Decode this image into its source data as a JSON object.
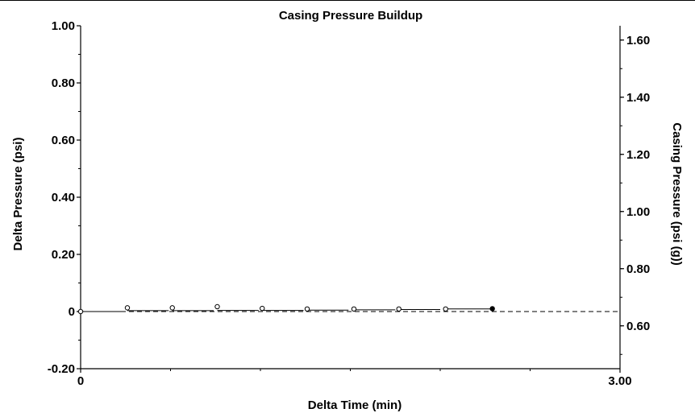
{
  "chart_data": {
    "type": "scatter",
    "title": "Casing Pressure Buildup",
    "xlabel": "Delta Time (min)",
    "ylabel": "Delta Pressure (psi)",
    "y2label": "Casing Pressure (psi (g))",
    "xlim": [
      0,
      3.0
    ],
    "ylim": [
      -0.2,
      1.0
    ],
    "y2lim": [
      0.45,
      1.65
    ],
    "x_ticks": [
      {
        "value": 0,
        "label": "0"
      },
      {
        "value": 3.0,
        "label": "3.00"
      }
    ],
    "y_ticks": [
      {
        "value": -0.2,
        "label": "-0.20"
      },
      {
        "value": 0,
        "label": "0"
      },
      {
        "value": 0.2,
        "label": "0.20"
      },
      {
        "value": 0.4,
        "label": "0.40"
      },
      {
        "value": 0.6,
        "label": "0.60"
      },
      {
        "value": 0.8,
        "label": "0.80"
      },
      {
        "value": 1.0,
        "label": "1.00"
      }
    ],
    "y2_ticks": [
      {
        "value": 0.6,
        "label": "0.60"
      },
      {
        "value": 0.8,
        "label": "0.80"
      },
      {
        "value": 1.0,
        "label": "1.00"
      },
      {
        "value": 1.2,
        "label": "1.20"
      },
      {
        "value": 1.4,
        "label": "1.40"
      },
      {
        "value": 1.6,
        "label": "1.60"
      }
    ],
    "reference_line": {
      "y": 0,
      "style": "dashed"
    },
    "grid": false,
    "series": [
      {
        "marker": "open-circle",
        "points": [
          {
            "x": 0.0,
            "y": 0.0
          },
          {
            "x": 0.26,
            "y": 0.013
          },
          {
            "x": 0.51,
            "y": 0.013
          },
          {
            "x": 0.76,
            "y": 0.017
          },
          {
            "x": 1.01,
            "y": 0.011
          },
          {
            "x": 1.26,
            "y": 0.009
          },
          {
            "x": 1.52,
            "y": 0.009
          },
          {
            "x": 1.77,
            "y": 0.009
          },
          {
            "x": 2.03,
            "y": 0.009
          }
        ]
      },
      {
        "marker": "filled-circle",
        "points": [
          {
            "x": 2.29,
            "y": 0.01
          }
        ]
      }
    ],
    "segments": [
      {
        "x1": 0.0,
        "x2": 0.24,
        "y": 0.0
      },
      {
        "x1": 0.26,
        "x2": 0.49,
        "y": 0.003
      },
      {
        "x1": 0.51,
        "x2": 0.74,
        "y": 0.003
      },
      {
        "x1": 0.76,
        "x2": 0.99,
        "y": 0.004
      },
      {
        "x1": 1.01,
        "x2": 1.24,
        "y": 0.004
      },
      {
        "x1": 1.26,
        "x2": 1.49,
        "y": 0.005
      },
      {
        "x1": 1.52,
        "x2": 1.75,
        "y": 0.006
      },
      {
        "x1": 1.77,
        "x2": 2.0,
        "y": 0.007
      },
      {
        "x1": 2.03,
        "x2": 2.29,
        "y": 0.009
      }
    ]
  }
}
